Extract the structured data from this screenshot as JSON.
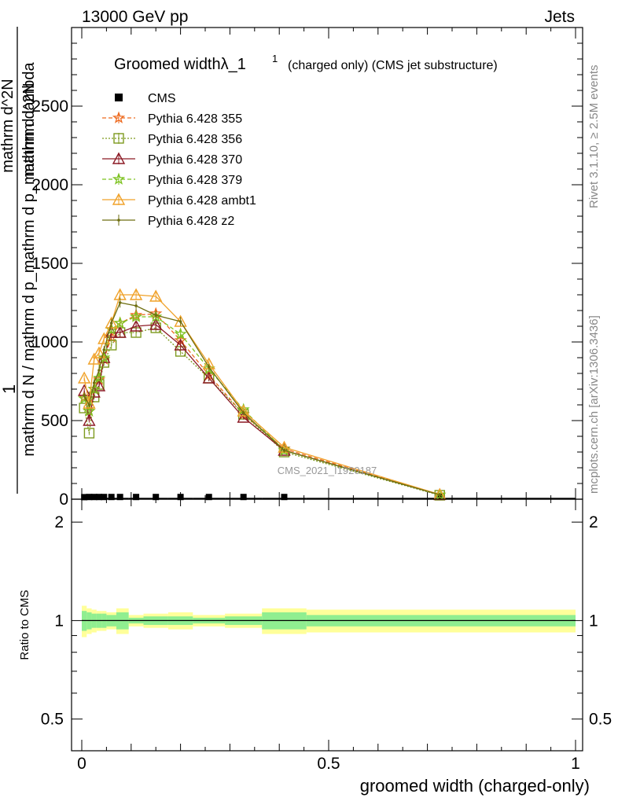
{
  "header": {
    "left": "13000 GeV pp",
    "right": "Jets"
  },
  "side_text": {
    "rivet": "Rivet 3.1.10, ≥ 2.5M events",
    "mcplots": "mcplots.cern.ch [arXiv:1306.3436]"
  },
  "watermark": "CMS_2021_I1920187",
  "ratio_ylabel": "Ratio to CMS",
  "chart_data": [
    {
      "type": "line",
      "title": "Groomed widthλ_1",
      "title_sup": "1",
      "title_suffix": "(charged only) (CMS jet substructure)",
      "ylabel_numerator": "1",
      "ylabel_denominator": "mathrm d N / mathrm d p_mathrm d p_mathrm d lambda",
      "ylabel_overlay": "mathrm d^2N",
      "xlabel": "groomed width (charged-only)",
      "xlim": [
        0,
        1
      ],
      "ylim": [
        0,
        3000
      ],
      "yticks": [
        "500",
        "1000",
        "1500",
        "2000",
        "2500"
      ],
      "x": [
        0.005,
        0.015,
        0.025,
        0.035,
        0.045,
        0.06,
        0.0775,
        0.11,
        0.15,
        0.2,
        0.2575,
        0.3275,
        0.41,
        0.725
      ],
      "series": [
        {
          "name": "CMS",
          "color": "#000000",
          "marker": "square",
          "values": [
            3,
            4,
            4,
            4,
            4,
            4,
            4,
            4,
            4,
            4,
            4,
            4,
            4,
            4
          ]
        },
        {
          "name": "Pythia 6.428 355",
          "color": "#ee6a1f",
          "marker": "star",
          "dash": "5,3",
          "values": [
            650,
            560,
            700,
            760,
            890,
            1030,
            1120,
            1170,
            1180,
            1010,
            790,
            540,
            320,
            28
          ]
        },
        {
          "name": "Pythia 6.428 356",
          "color": "#7d9a1e",
          "marker": "open-square",
          "dash": "2,2",
          "values": [
            580,
            420,
            650,
            730,
            870,
            980,
            1060,
            1060,
            1090,
            940,
            770,
            540,
            300,
            25
          ]
        },
        {
          "name": "Pythia 6.428 370",
          "color": "#8c1a25",
          "marker": "open-triangle",
          "dash": "",
          "values": [
            690,
            500,
            680,
            720,
            900,
            1060,
            1060,
            1100,
            1110,
            980,
            770,
            520,
            310,
            28
          ]
        },
        {
          "name": "Pythia 6.428 379",
          "color": "#7cc21e",
          "marker": "star",
          "dash": "5,3",
          "values": [
            640,
            560,
            700,
            770,
            900,
            1080,
            1120,
            1160,
            1160,
            1050,
            830,
            570,
            310,
            28
          ]
        },
        {
          "name": "Pythia 6.428 ambt1",
          "color": "#f0a22a",
          "marker": "open-triangle",
          "dash": "",
          "values": [
            770,
            610,
            890,
            930,
            1020,
            1120,
            1300,
            1300,
            1290,
            1130,
            860,
            560,
            330,
            30
          ]
        },
        {
          "name": "Pythia 6.428 z2",
          "color": "#6e6e10",
          "marker": "dot",
          "dash": "",
          "values": [
            660,
            600,
            740,
            820,
            950,
            1120,
            1250,
            1230,
            1170,
            1130,
            840,
            550,
            310,
            28
          ]
        }
      ]
    },
    {
      "type": "area",
      "ylabel": "Ratio to CMS",
      "xlabel": "groomed width (charged-only)",
      "xlim": [
        0,
        1
      ],
      "ylim": [
        0.4,
        2.35
      ],
      "y_log_scale": true,
      "yticks": [
        "0.5",
        "1",
        "2"
      ],
      "xticks": [
        "0",
        "0.5",
        "1"
      ],
      "bins": [
        [
          0,
          0.01,
          0.93,
          1.07,
          0.89,
          1.11
        ],
        [
          0.01,
          0.02,
          0.94,
          1.06,
          0.91,
          1.09
        ],
        [
          0.02,
          0.03,
          0.95,
          1.05,
          0.92,
          1.08
        ],
        [
          0.03,
          0.04,
          0.95,
          1.05,
          0.93,
          1.07
        ],
        [
          0.04,
          0.05,
          0.95,
          1.05,
          0.93,
          1.07
        ],
        [
          0.05,
          0.07,
          0.96,
          1.04,
          0.94,
          1.06
        ],
        [
          0.07,
          0.095,
          0.94,
          1.06,
          0.91,
          1.09
        ],
        [
          0.095,
          0.125,
          0.98,
          1.02,
          0.96,
          1.04
        ],
        [
          0.125,
          0.175,
          0.97,
          1.03,
          0.95,
          1.05
        ],
        [
          0.175,
          0.225,
          0.97,
          1.03,
          0.94,
          1.06
        ],
        [
          0.225,
          0.29,
          0.98,
          1.02,
          0.96,
          1.04
        ],
        [
          0.29,
          0.365,
          0.97,
          1.03,
          0.95,
          1.05
        ],
        [
          0.365,
          0.455,
          0.94,
          1.06,
          0.91,
          1.09
        ],
        [
          0.455,
          1.0,
          0.96,
          1.04,
          0.92,
          1.08
        ]
      ]
    }
  ]
}
